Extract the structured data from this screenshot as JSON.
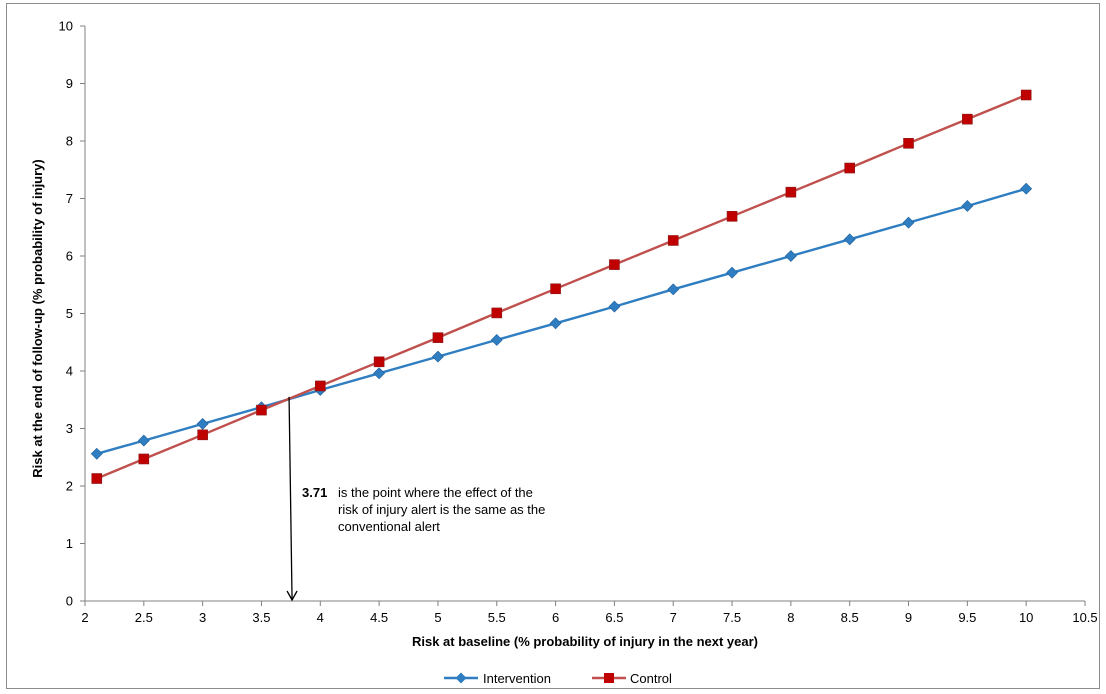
{
  "chart_data": {
    "type": "line",
    "xlabel": "Risk at baseline (% probability  of injury in the next year)",
    "ylabel": "Risk at the end of follow-up (% probability  of injury)",
    "xlim": [
      2,
      10.5
    ],
    "ylim": [
      0,
      10
    ],
    "x_ticks": [
      "2",
      "2.5",
      "3",
      "3.5",
      "4",
      "4.5",
      "5",
      "5.5",
      "6",
      "6.5",
      "7",
      "7.5",
      "8",
      "8.5",
      "9",
      "9.5",
      "10",
      "10.5"
    ],
    "y_ticks": [
      "0",
      "1",
      "2",
      "3",
      "4",
      "5",
      "6",
      "7",
      "8",
      "9",
      "10"
    ],
    "grid": false,
    "legend_position": "bottom",
    "x": [
      2.1,
      2.5,
      3,
      3.5,
      4,
      4.5,
      5,
      5.5,
      6,
      6.5,
      7,
      7.5,
      8,
      8.5,
      9,
      9.5,
      10
    ],
    "series": [
      {
        "name": "Intervention",
        "color": "#2e7ec1",
        "marker": "diamond",
        "values": [
          2.56,
          2.79,
          3.08,
          3.37,
          3.67,
          3.96,
          4.25,
          4.54,
          4.83,
          5.12,
          5.42,
          5.71,
          6.0,
          6.29,
          6.58,
          6.87,
          7.17
        ]
      },
      {
        "name": "Control",
        "color": "#c0504d",
        "marker": "square",
        "values": [
          2.13,
          2.47,
          2.89,
          3.32,
          3.74,
          4.16,
          4.58,
          5.01,
          5.43,
          5.85,
          6.27,
          6.69,
          7.11,
          7.53,
          7.96,
          8.38,
          8.8
        ]
      }
    ],
    "annotation": {
      "bold_value": "3.71",
      "lines": [
        "is the point where the effect of the",
        "risk of injury alert is the same as the",
        "conventional alert"
      ],
      "arrow_x": 3.76,
      "arrow_y_start": 3.55,
      "arrow_y_end": 0
    }
  }
}
